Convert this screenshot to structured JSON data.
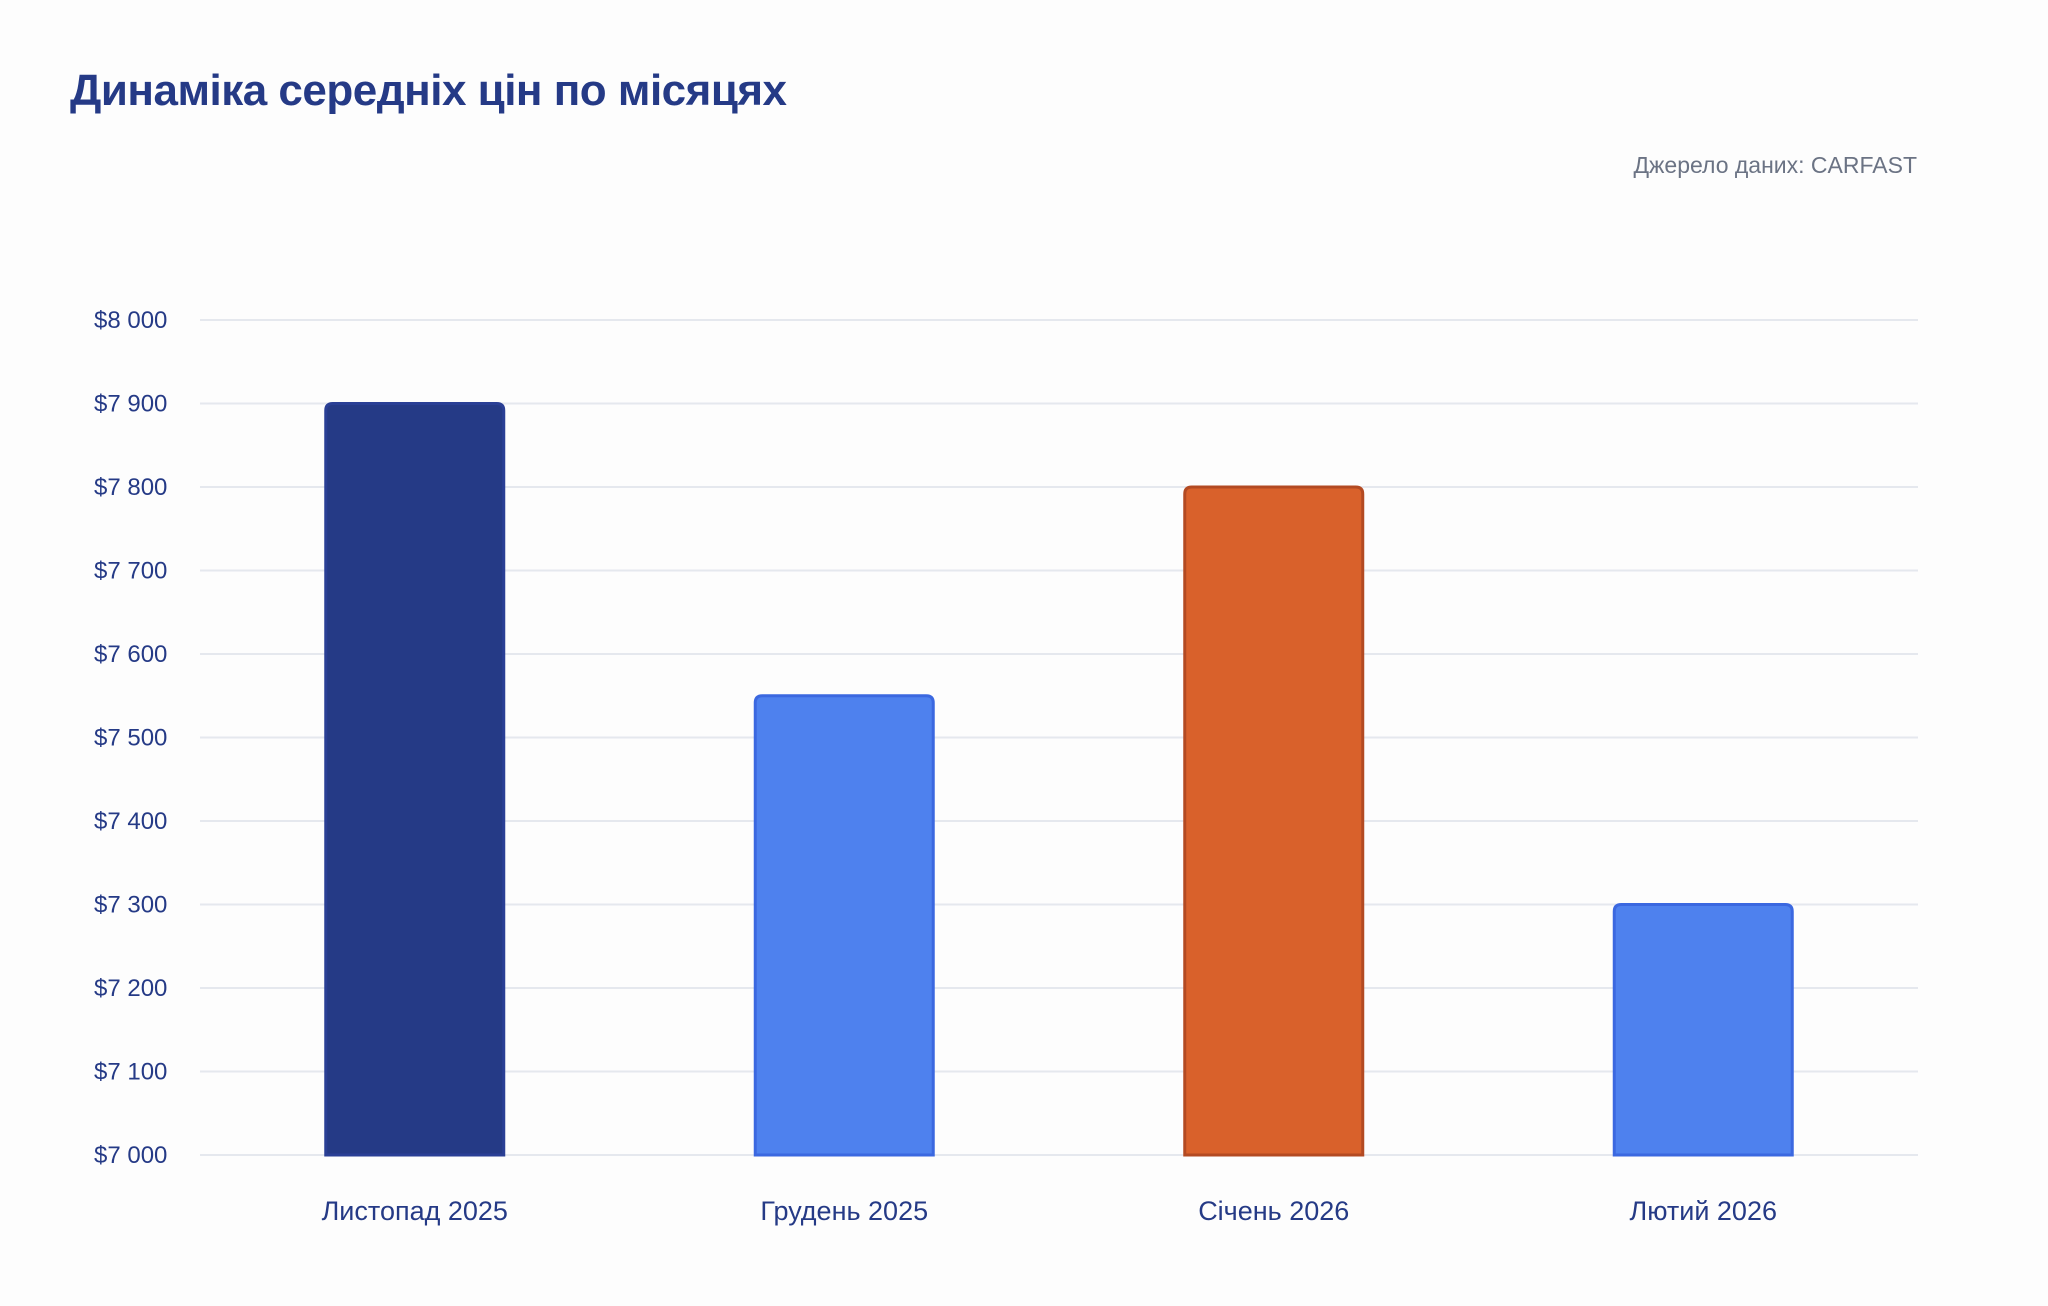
{
  "header": {
    "title": "Динаміка середніх цін по місяцях",
    "source": "Джерело даних: CARFAST"
  },
  "chart_data": {
    "type": "bar",
    "title": "Динаміка середніх цін по місяцях",
    "categories": [
      "Листопад 2025",
      "Грудень 2025",
      "Січень 2026",
      "Лютий 2026"
    ],
    "values": [
      7900,
      7550,
      7800,
      7300
    ],
    "ylim": [
      7000,
      8000
    ],
    "yticks": [
      7000,
      7100,
      7200,
      7300,
      7400,
      7500,
      7600,
      7700,
      7800,
      7900,
      8000
    ],
    "ytick_labels": [
      "$7 000",
      "$7 100",
      "$7 200",
      "$7 300",
      "$7 400",
      "$7 500",
      "$7 600",
      "$7 700",
      "$7 800",
      "$7 900",
      "$8 000"
    ],
    "xlabel": "",
    "ylabel": "",
    "grid": true,
    "bar_colors": [
      "#253a86",
      "#4e81ee",
      "#d9612b",
      "#4e81ee"
    ],
    "bar_border_colors": [
      "#2a3f95",
      "#3b68e0",
      "#b34a22",
      "#3b68e0"
    ],
    "axis_text_color": "#253a86",
    "grid_color": "#e5e8ee"
  }
}
